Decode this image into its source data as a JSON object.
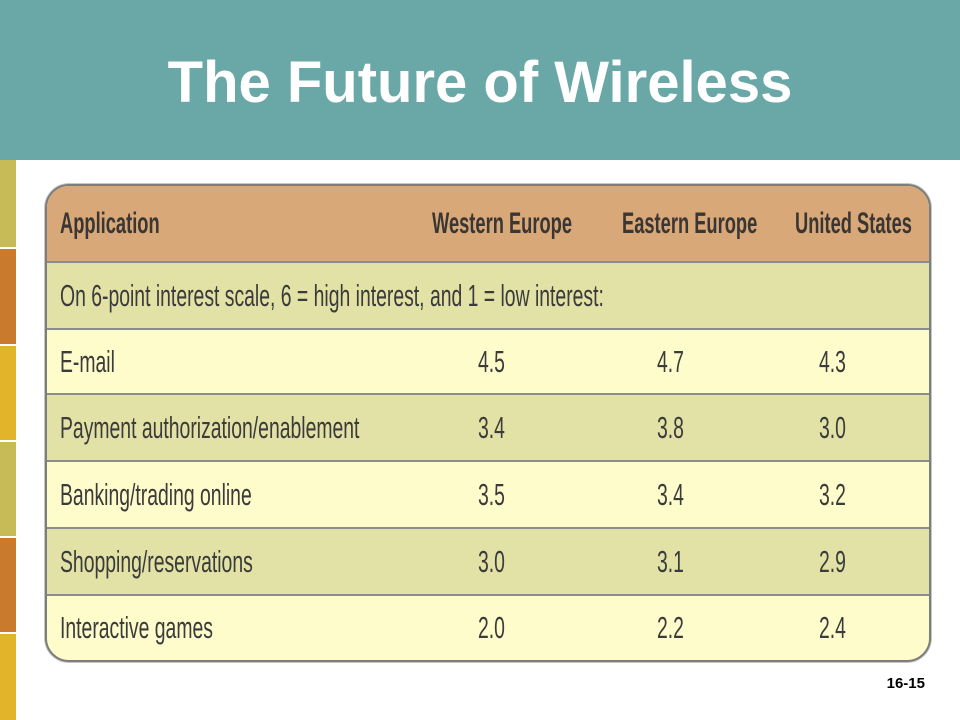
{
  "slide": {
    "title": "The Future of Wireless",
    "page_number": "16-15"
  },
  "table": {
    "headers": [
      "Application",
      "Western Europe",
      "Eastern Europe",
      "United States"
    ],
    "note": "On 6-point interest scale, 6 = high interest, and 1 = low interest:",
    "rows": [
      {
        "application": "E-mail",
        "scores": [
          "4.5",
          "4.7",
          "4.3"
        ]
      },
      {
        "application": "Payment authorization/enablement",
        "scores": [
          "3.4",
          "3.8",
          "3.0"
        ]
      },
      {
        "application": "Banking/trading online",
        "scores": [
          "3.5",
          "3.4",
          "3.2"
        ]
      },
      {
        "application": "Shopping/reservations",
        "scores": [
          "3.0",
          "3.1",
          "2.9"
        ]
      },
      {
        "application": "Interactive games",
        "scores": [
          "2.0",
          "2.2",
          "2.4"
        ]
      }
    ]
  },
  "theme": {
    "title_band": "#6AA8A8",
    "title_text": "#FFFFFF",
    "table_header": "#D9A878",
    "row_shaded": "#E2E2A6",
    "row_light": "#FEFCCB",
    "table_border": "#7D7D7D",
    "side_strip": [
      "#C6BB56",
      "#C97A2C",
      "#E2B42A",
      "#C6BB56",
      "#C97A2C",
      "#E2B42A"
    ]
  }
}
